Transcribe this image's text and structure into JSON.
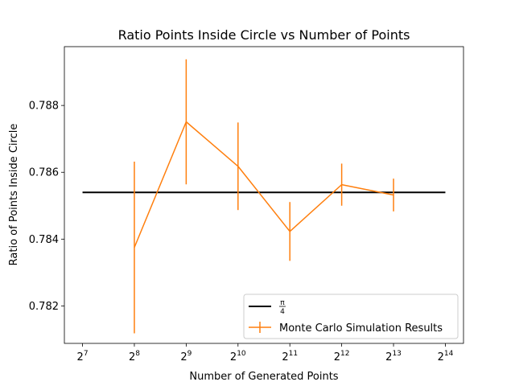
{
  "chart_data": {
    "type": "line",
    "title": "Ratio Points Inside Circle vs Number of Points",
    "xlabel": "Number of Generated Points",
    "ylabel": "Ratio of Points Inside Circle",
    "x_scale": "log2",
    "xlim_exponent": [
      6.65,
      14.35
    ],
    "ylim": [
      0.78088,
      0.78976
    ],
    "x_ticks": [
      {
        "base": "2",
        "exp": "7",
        "value": 128
      },
      {
        "base": "2",
        "exp": "8",
        "value": 256
      },
      {
        "base": "2",
        "exp": "9",
        "value": 512
      },
      {
        "base": "2",
        "exp": "10",
        "value": 1024
      },
      {
        "base": "2",
        "exp": "11",
        "value": 2048
      },
      {
        "base": "2",
        "exp": "12",
        "value": 4096
      },
      {
        "base": "2",
        "exp": "13",
        "value": 8192
      },
      {
        "base": "2",
        "exp": "14",
        "value": 16384
      }
    ],
    "y_ticks": [
      {
        "label": "0.782",
        "value": 0.782
      },
      {
        "label": "0.784",
        "value": 0.784
      },
      {
        "label": "0.786",
        "value": 0.786
      },
      {
        "label": "0.788",
        "value": 0.788
      }
    ],
    "reference_line": {
      "name": "π/4",
      "numerator": "π",
      "denominator": "4",
      "value": 0.785398,
      "x_range": [
        128,
        16384
      ],
      "color": "#000000"
    },
    "series": [
      {
        "name": "Monte Carlo Simulation Results",
        "color": "#ff7f0e",
        "x": [
          256,
          512,
          1024,
          2048,
          4096,
          8192
        ],
        "y": [
          0.78375,
          0.78751,
          0.78618,
          0.78423,
          0.78563,
          0.78532
        ],
        "yerr": [
          0.00257,
          0.00187,
          0.00131,
          0.00088,
          0.00063,
          0.00049
        ]
      }
    ],
    "grid": false,
    "legend_position": "lower-right"
  }
}
